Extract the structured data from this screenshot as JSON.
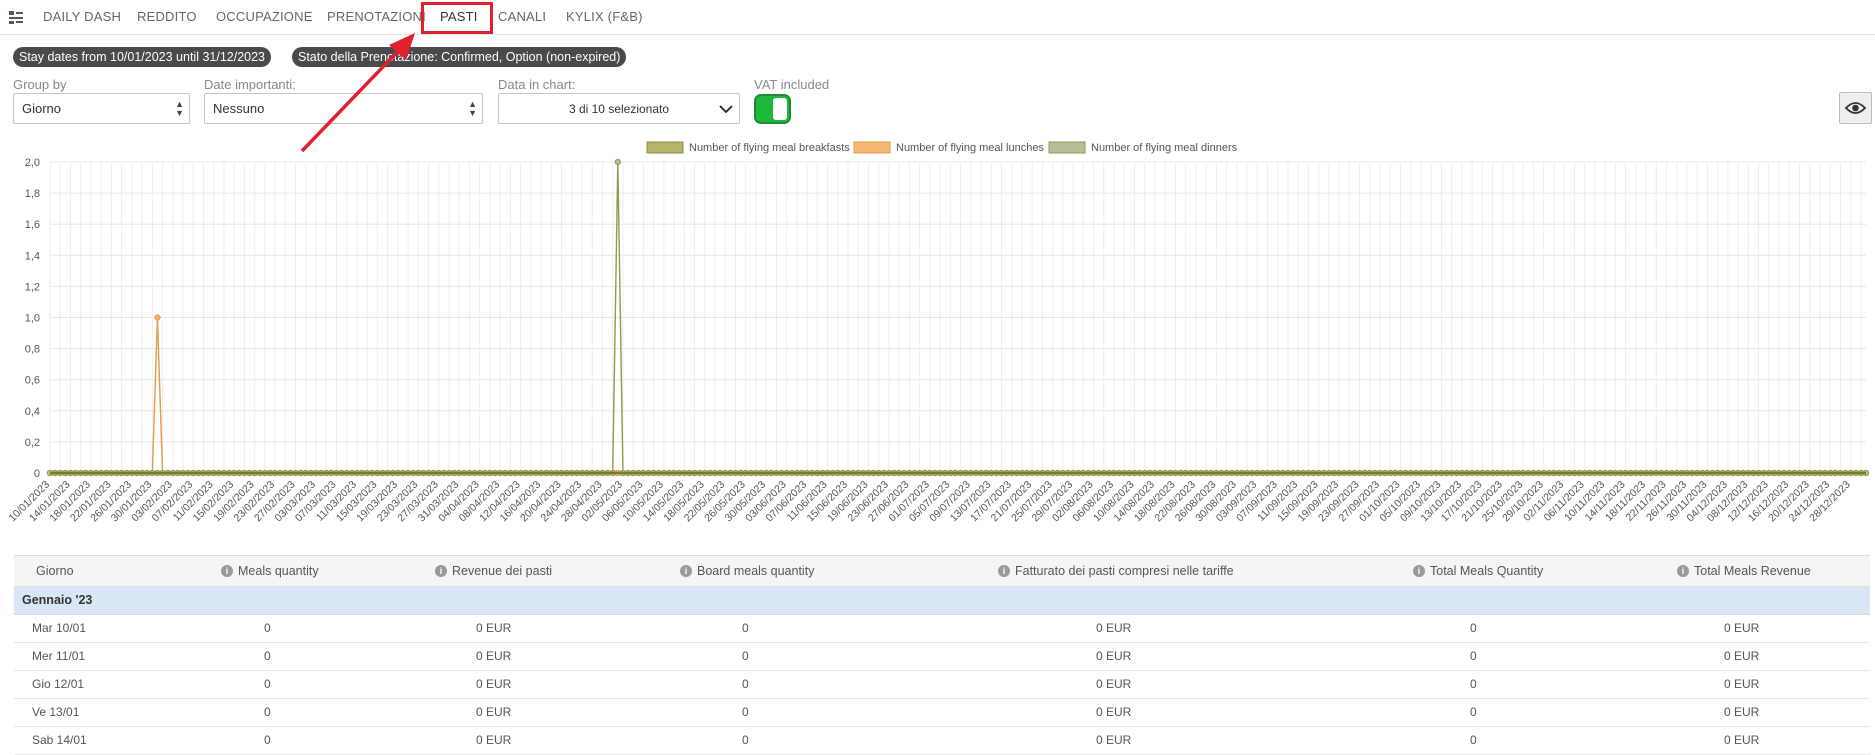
{
  "nav": {
    "tabs": [
      {
        "label": "DAILY DASH"
      },
      {
        "label": "REDDITO"
      },
      {
        "label": "OCCUPAZIONE"
      },
      {
        "label": "PRENOTAZIONI"
      },
      {
        "label": "PASTI"
      },
      {
        "label": "CANALI"
      },
      {
        "label": "KYLIX (F&B)"
      }
    ],
    "active_tab": "PASTI"
  },
  "filters": {
    "stay_dates": "Stay dates from 10/01/2023 until 31/12/2023",
    "status": "Stato della Prenotazione: Confirmed, Option (non-expired)"
  },
  "controls": {
    "group_by_label": "Group by",
    "group_by_value": "Giorno",
    "important_dates_label": "Date importanti:",
    "important_dates_value": "Nessuno",
    "data_in_chart_label": "Data in chart:",
    "data_in_chart_value": "3 di 10 selezionato",
    "vat_label": "VAT included",
    "vat_on": true
  },
  "colors": {
    "accent_red": "#e0202e",
    "toggle_green": "#1fb83a",
    "group_row_bg": "#d8e6f5"
  },
  "chart_data": {
    "type": "line",
    "legend_position": "top",
    "grid": true,
    "ylim": [
      0,
      2
    ],
    "y_ticks": [
      "0",
      "0,2",
      "0,4",
      "0,6",
      "0,8",
      "1,0",
      "1,2",
      "1,4",
      "1,6",
      "1,8",
      "2,0"
    ],
    "x_start": "10/01/2023",
    "x_end": "31/12/2023",
    "x_tick_labels": [
      "10/01/2023",
      "14/01/2023",
      "18/01/2023",
      "22/01/2023",
      "26/01/2023",
      "30/01/2023",
      "03/02/2023",
      "07/02/2023",
      "11/02/2023",
      "15/02/2023",
      "19/02/2023",
      "23/02/2023",
      "27/02/2023",
      "03/03/2023",
      "07/03/2023",
      "11/03/2023",
      "15/03/2023",
      "19/03/2023",
      "23/03/2023",
      "27/03/2023",
      "31/03/2023",
      "04/04/2023",
      "08/04/2023",
      "12/04/2023",
      "16/04/2023",
      "20/04/2023",
      "24/04/2023",
      "28/04/2023",
      "02/05/2023",
      "06/05/2023",
      "10/05/2023",
      "14/05/2023",
      "18/05/2023",
      "22/05/2023",
      "26/05/2023",
      "30/05/2023",
      "03/06/2023",
      "07/06/2023",
      "11/06/2023",
      "15/06/2023",
      "19/06/2023",
      "23/06/2023",
      "27/06/2023",
      "01/07/2023",
      "05/07/2023",
      "09/07/2023",
      "13/07/2023",
      "17/07/2023",
      "21/07/2023",
      "25/07/2023",
      "29/07/2023",
      "02/08/2023",
      "06/08/2023",
      "10/08/2023",
      "14/08/2023",
      "18/08/2023",
      "22/08/2023",
      "26/08/2023",
      "30/08/2023",
      "03/09/2023",
      "07/09/2023",
      "11/09/2023",
      "15/09/2023",
      "19/09/2023",
      "23/09/2023",
      "27/09/2023",
      "01/10/2023",
      "05/10/2023",
      "09/10/2023",
      "13/10/2023",
      "17/10/2023",
      "21/10/2023",
      "25/10/2023",
      "29/10/2023",
      "02/11/2023",
      "06/11/2023",
      "10/11/2023",
      "14/11/2023",
      "18/11/2023",
      "22/11/2023",
      "26/11/2023",
      "30/11/2023",
      "04/12/2023",
      "08/12/2023",
      "12/12/2023",
      "16/12/2023",
      "20/12/2023",
      "24/12/2023",
      "28/12/2023"
    ],
    "series": [
      {
        "name": "Number of flying meal breakfasts",
        "color": "#b5b56a",
        "border": "#8c8c3a",
        "baseline": 0,
        "nonzero": []
      },
      {
        "name": "Number of flying meal lunches",
        "color": "#f5b873",
        "border": "#e59a45",
        "baseline": 0,
        "nonzero": [
          {
            "date": "31/01/2023",
            "value": 1
          }
        ]
      },
      {
        "name": "Number of flying meal dinners",
        "color": "#b8bd96",
        "border": "#8e9a52",
        "baseline": 0,
        "nonzero": [
          {
            "date": "01/05/2023",
            "value": 2
          }
        ]
      }
    ]
  },
  "table": {
    "columns": [
      {
        "label": "Giorno",
        "info": false
      },
      {
        "label": "Meals quantity",
        "info": true
      },
      {
        "label": "Revenue dei pasti",
        "info": true
      },
      {
        "label": "Board meals quantity",
        "info": true
      },
      {
        "label": "Fatturato dei pasti compresi nelle tariffe",
        "info": true
      },
      {
        "label": "Total Meals Quantity",
        "info": true
      },
      {
        "label": "Total Meals Revenue",
        "info": true
      }
    ],
    "group_label": "Gennaio '23",
    "rows": [
      [
        "Mar 10/01",
        "0",
        "0 EUR",
        "0",
        "0 EUR",
        "0",
        "0 EUR"
      ],
      [
        "Mer 11/01",
        "0",
        "0 EUR",
        "0",
        "0 EUR",
        "0",
        "0 EUR"
      ],
      [
        "Gio 12/01",
        "0",
        "0 EUR",
        "0",
        "0 EUR",
        "0",
        "0 EUR"
      ],
      [
        "Ve 13/01",
        "0",
        "0 EUR",
        "0",
        "0 EUR",
        "0",
        "0 EUR"
      ],
      [
        "Sab 14/01",
        "0",
        "0 EUR",
        "0",
        "0 EUR",
        "0",
        "0 EUR"
      ]
    ]
  }
}
